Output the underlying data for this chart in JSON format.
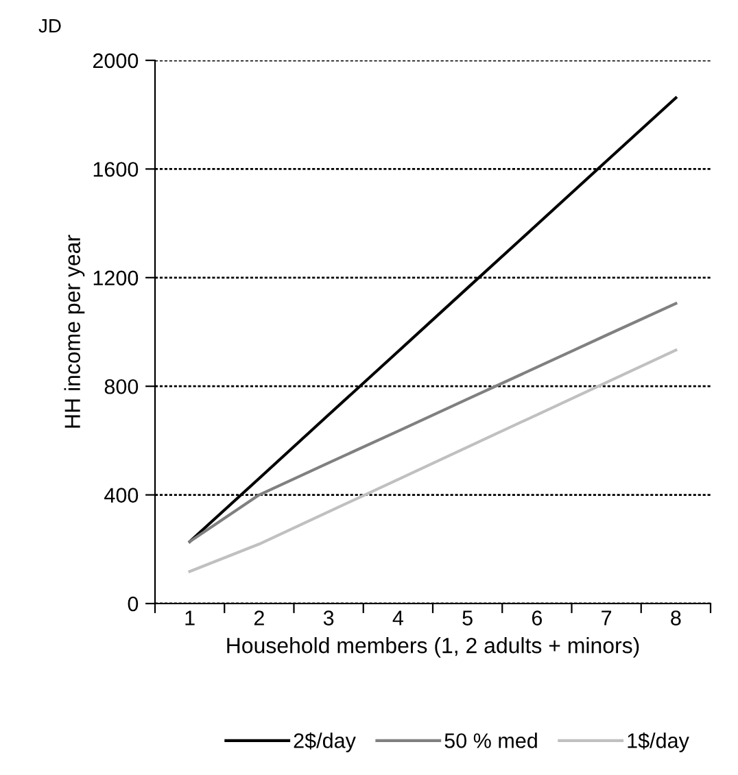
{
  "chart_data": {
    "type": "line",
    "xlabel": "Household members (1, 2 adults + minors)",
    "ylabel": "HH income per year",
    "annotations": [
      "JD"
    ],
    "categories": [
      "1",
      "2",
      "3",
      "4",
      "5",
      "6",
      "7",
      "8"
    ],
    "series": [
      {
        "name": "2$/day",
        "color": "#000000",
        "values": [
          228,
          461,
          695,
          928,
          1162,
          1395,
          1629,
          1862
        ]
      },
      {
        "name": "50 % med",
        "color": "#808080",
        "values": [
          228,
          400,
          518,
          635,
          753,
          870,
          988,
          1105
        ]
      },
      {
        "name": "1$/day",
        "color": "#c0c0c0",
        "values": [
          118,
          219,
          338,
          457,
          576,
          695,
          814,
          933
        ]
      }
    ],
    "ylim": [
      0,
      2000
    ],
    "yticks": [
      0,
      400,
      800,
      1200,
      1600,
      2000
    ],
    "grid": "y",
    "legend": "bottom",
    "marker": "none",
    "line_style": "solid"
  }
}
